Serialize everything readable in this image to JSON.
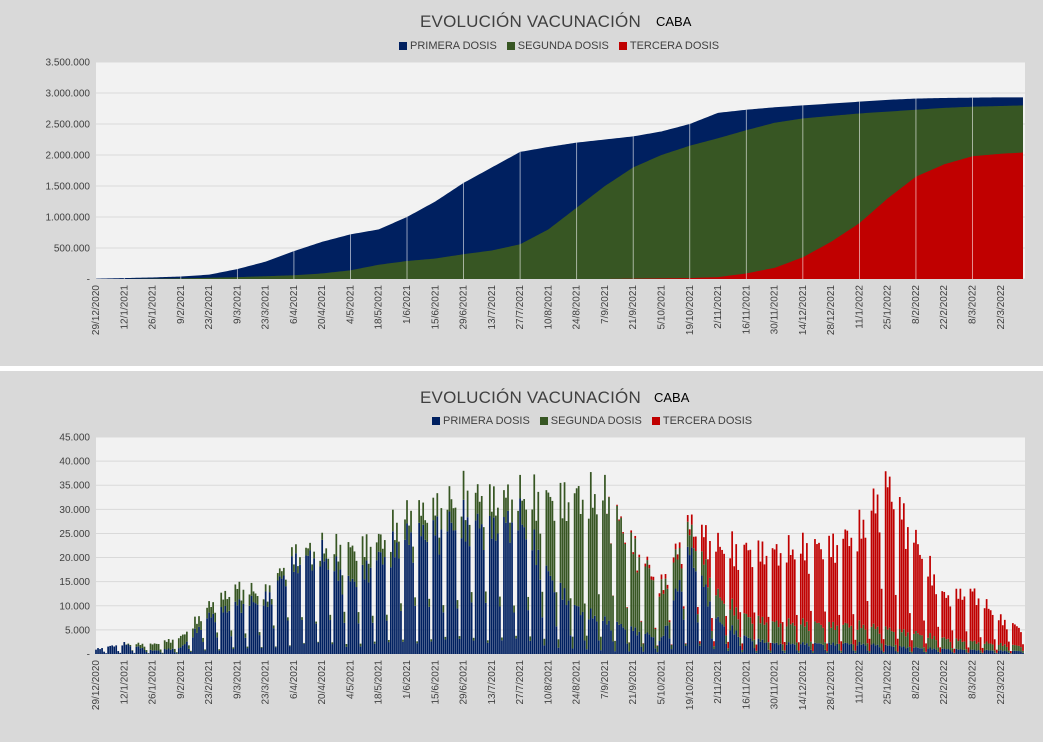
{
  "colors": {
    "primera": "#002060",
    "segunda": "#375623",
    "tercera": "#c00000",
    "plot_bg": "#f2f2f2",
    "panel_bg": "#d9d9d9",
    "grid": "#d9d9d9"
  },
  "chart_data": [
    {
      "type": "area",
      "stacking": "overlay",
      "title": "EVOLUCIÓN VACUNACIÓN",
      "subtitle": "CABA",
      "legend": [
        "PRIMERA DOSIS",
        "SEGUNDA DOSIS",
        "TERCERA DOSIS"
      ],
      "legend_position": "top",
      "xlabel": "",
      "ylabel": "",
      "ylim": [
        0,
        3500000
      ],
      "y_ticks": [
        0,
        500000,
        1000000,
        1500000,
        2000000,
        2500000,
        3000000,
        3500000
      ],
      "y_tick_labels": [
        "-",
        "500.000",
        "1.000.000",
        "1.500.000",
        "2.000.000",
        "2.500.000",
        "3.000.000",
        "3.500.000"
      ],
      "x_range_days": [
        0,
        460
      ],
      "x_tick_days": [
        0,
        14,
        28,
        42,
        56,
        70,
        84,
        98,
        112,
        126,
        140,
        154,
        168,
        182,
        196,
        210,
        224,
        238,
        252,
        266,
        280,
        294,
        308,
        322,
        336,
        350,
        364,
        378,
        392,
        406,
        420,
        434,
        448
      ],
      "x_tick_labels": [
        "29/12/2020",
        "12/1/2021",
        "26/1/2021",
        "9/2/2021",
        "23/2/2021",
        "9/3/2021",
        "23/3/2021",
        "6/4/2021",
        "20/4/2021",
        "4/5/2021",
        "18/5/2021",
        "1/6/2021",
        "15/6/2021",
        "29/6/2021",
        "13/7/2021",
        "27/7/2021",
        "10/8/2021",
        "24/8/2021",
        "7/9/2021",
        "21/9/2021",
        "5/10/2021",
        "19/10/2021",
        "2/11/2021",
        "16/11/2021",
        "30/11/2021",
        "14/12/2021",
        "28/12/2021",
        "11/1/2022",
        "25/1/2022",
        "8/2/2022",
        "22/2/2022",
        "8/3/2022",
        "22/3/2022"
      ],
      "series": [
        {
          "name": "PRIMERA DOSIS",
          "x": [
            0,
            14,
            28,
            42,
            56,
            70,
            84,
            98,
            112,
            126,
            140,
            154,
            168,
            182,
            196,
            210,
            224,
            238,
            252,
            266,
            280,
            294,
            308,
            322,
            336,
            350,
            364,
            378,
            392,
            406,
            420,
            434,
            448,
            459
          ],
          "values": [
            5000,
            15000,
            25000,
            40000,
            70000,
            160000,
            280000,
            450000,
            600000,
            720000,
            800000,
            1000000,
            1250000,
            1550000,
            1800000,
            2050000,
            2130000,
            2200000,
            2250000,
            2300000,
            2380000,
            2500000,
            2680000,
            2730000,
            2770000,
            2800000,
            2830000,
            2860000,
            2890000,
            2910000,
            2920000,
            2925000,
            2930000,
            2930000
          ]
        },
        {
          "name": "SEGUNDA DOSIS",
          "x": [
            0,
            14,
            28,
            42,
            56,
            70,
            84,
            98,
            112,
            126,
            140,
            154,
            168,
            182,
            196,
            210,
            224,
            238,
            252,
            266,
            280,
            294,
            308,
            322,
            336,
            350,
            364,
            378,
            392,
            406,
            420,
            434,
            448,
            459
          ],
          "values": [
            0,
            0,
            5000,
            10000,
            20000,
            30000,
            45000,
            60000,
            90000,
            140000,
            230000,
            290000,
            330000,
            400000,
            460000,
            560000,
            800000,
            1150000,
            1500000,
            1800000,
            2000000,
            2150000,
            2270000,
            2400000,
            2520000,
            2590000,
            2630000,
            2670000,
            2700000,
            2730000,
            2760000,
            2780000,
            2790000,
            2800000
          ]
        },
        {
          "name": "TERCERA DOSIS",
          "x": [
            0,
            14,
            28,
            42,
            56,
            70,
            84,
            98,
            112,
            126,
            140,
            154,
            168,
            182,
            196,
            210,
            224,
            238,
            252,
            266,
            280,
            294,
            308,
            322,
            336,
            350,
            364,
            378,
            392,
            406,
            420,
            434,
            448,
            459
          ],
          "values": [
            0,
            0,
            0,
            0,
            0,
            0,
            0,
            0,
            0,
            0,
            0,
            0,
            0,
            0,
            0,
            0,
            0,
            0,
            0,
            5000,
            10000,
            15000,
            30000,
            90000,
            180000,
            350000,
            600000,
            900000,
            1300000,
            1650000,
            1850000,
            1980000,
            2020000,
            2040000
          ]
        }
      ]
    },
    {
      "type": "bar",
      "stacking": "stacked",
      "title": "EVOLUCIÓN VACUNACIÓN",
      "subtitle": "CABA",
      "legend": [
        "PRIMERA DOSIS",
        "SEGUNDA DOSIS",
        "TERCERA DOSIS"
      ],
      "legend_position": "top",
      "xlabel": "",
      "ylabel": "",
      "ylim": [
        0,
        45000
      ],
      "y_ticks": [
        0,
        5000,
        10000,
        15000,
        20000,
        25000,
        30000,
        35000,
        40000,
        45000
      ],
      "y_tick_labels": [
        "-",
        "5.000",
        "10.000",
        "15.000",
        "20.000",
        "25.000",
        "30.000",
        "35.000",
        "40.000",
        "45.000"
      ],
      "x_range_days": [
        0,
        460
      ],
      "x_tick_days": [
        0,
        14,
        28,
        42,
        56,
        70,
        84,
        98,
        112,
        126,
        140,
        154,
        168,
        182,
        196,
        210,
        224,
        238,
        252,
        266,
        280,
        294,
        308,
        322,
        336,
        350,
        364,
        378,
        392,
        406,
        420,
        434,
        448
      ],
      "x_tick_labels": [
        "29/12/2020",
        "12/1/2021",
        "26/1/2021",
        "9/2/2021",
        "23/2/2021",
        "9/3/2021",
        "23/3/2021",
        "6/4/2021",
        "20/4/2021",
        "4/5/2021",
        "18/5/2021",
        "1/6/2021",
        "15/6/2021",
        "29/6/2021",
        "13/7/2021",
        "27/7/2021",
        "10/8/2021",
        "24/8/2021",
        "7/9/2021",
        "21/9/2021",
        "5/10/2021",
        "19/10/2021",
        "2/11/2021",
        "16/11/2021",
        "30/11/2021",
        "14/12/2021",
        "28/12/2021",
        "11/1/2022",
        "25/1/2022",
        "8/2/2022",
        "22/2/2022",
        "8/3/2022",
        "22/3/2022"
      ],
      "series": [
        {
          "name": "PRIMERA DOSIS",
          "note": "weekday peak daily doses, sampled every 14 days",
          "x": [
            0,
            14,
            28,
            42,
            56,
            70,
            84,
            98,
            112,
            126,
            140,
            154,
            168,
            182,
            196,
            210,
            224,
            238,
            252,
            266,
            280,
            294,
            308,
            322,
            336,
            350,
            364,
            378,
            392,
            406,
            420,
            434,
            448,
            459
          ],
          "values": [
            1200,
            2500,
            800,
            1500,
            9000,
            12000,
            13000,
            22000,
            24000,
            17000,
            23000,
            28000,
            30000,
            32000,
            30000,
            33000,
            19000,
            11000,
            8000,
            6000,
            3500,
            25000,
            8000,
            4000,
            2500,
            2500,
            2500,
            2500,
            2000,
            1500,
            1200,
            1000,
            800,
            700
          ]
        },
        {
          "name": "SEGUNDA DOSIS",
          "x": [
            0,
            14,
            28,
            42,
            56,
            70,
            84,
            98,
            112,
            126,
            140,
            154,
            168,
            182,
            196,
            210,
            224,
            238,
            252,
            266,
            280,
            294,
            308,
            322,
            336,
            350,
            364,
            378,
            392,
            406,
            420,
            434,
            448,
            459
          ],
          "values": [
            0,
            0,
            1500,
            2500,
            2500,
            4000,
            1500,
            2000,
            1500,
            8000,
            4000,
            5000,
            5000,
            6000,
            7000,
            5000,
            18000,
            27000,
            30000,
            20000,
            12000,
            5000,
            6000,
            5000,
            5000,
            5000,
            4500,
            4500,
            4000,
            3500,
            2500,
            2000,
            1500,
            1200
          ]
        },
        {
          "name": "TERCERA DOSIS",
          "x": [
            0,
            14,
            28,
            42,
            56,
            70,
            84,
            98,
            112,
            126,
            140,
            154,
            168,
            182,
            196,
            210,
            224,
            238,
            252,
            266,
            280,
            294,
            308,
            322,
            336,
            350,
            364,
            378,
            392,
            406,
            420,
            434,
            448,
            459
          ],
          "values": [
            0,
            0,
            0,
            0,
            0,
            0,
            0,
            0,
            0,
            0,
            0,
            0,
            0,
            0,
            0,
            0,
            0,
            0,
            0,
            500,
            1000,
            1500,
            12000,
            16000,
            17000,
            18000,
            19000,
            23000,
            35000,
            22000,
            10000,
            12000,
            6000,
            4000
          ]
        }
      ]
    }
  ]
}
